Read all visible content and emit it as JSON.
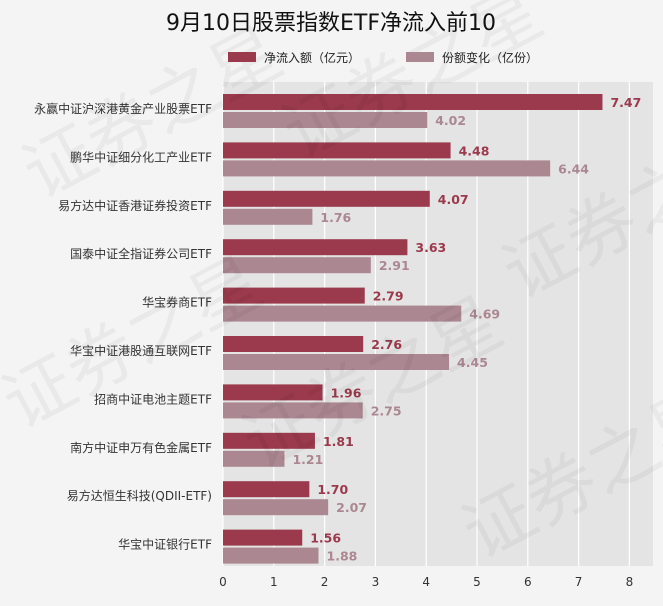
{
  "chart_data": {
    "type": "bar",
    "orientation": "horizontal",
    "title": "9月10日股票指数ETF净流入前10",
    "categories": [
      "永赢中证沪深港黄金产业股票ETF",
      "鹏华中证细分化工产业ETF",
      "易方达中证香港证券投资ETF",
      "国泰中证全指证券公司ETF",
      "华宝券商ETF",
      "华宝中证港股通互联网ETF",
      "招商中证电池主题ETF",
      "南方中证申万有色金属ETF",
      "易方达恒生科技(QDII-ETF)",
      "华宝中证银行ETF"
    ],
    "series": [
      {
        "name": "净流入额（亿元）",
        "color": "#9a3a4c",
        "values": [
          7.47,
          4.48,
          4.07,
          3.63,
          2.79,
          2.76,
          1.96,
          1.81,
          1.7,
          1.56
        ],
        "labels": [
          "7.47",
          "4.48",
          "4.07",
          "3.63",
          "2.79",
          "2.76",
          "1.96",
          "1.81",
          "1.70",
          "1.56"
        ]
      },
      {
        "name": "份额变化（亿份）",
        "color": "#ab8791",
        "values": [
          4.02,
          6.44,
          1.76,
          2.91,
          4.69,
          4.45,
          2.75,
          1.21,
          2.07,
          1.88
        ],
        "labels": [
          "4.02",
          "6.44",
          "1.76",
          "2.91",
          "4.69",
          "4.45",
          "2.75",
          "1.21",
          "2.07",
          "1.88"
        ]
      }
    ],
    "xlim": [
      0,
      8
    ],
    "xticks": [
      "0",
      "1",
      "2",
      "3",
      "4",
      "5",
      "6",
      "7",
      "8"
    ],
    "grid": true,
    "legend_position": "top-center",
    "plot_background": "#e4e4e4",
    "watermark": "证券之星"
  }
}
